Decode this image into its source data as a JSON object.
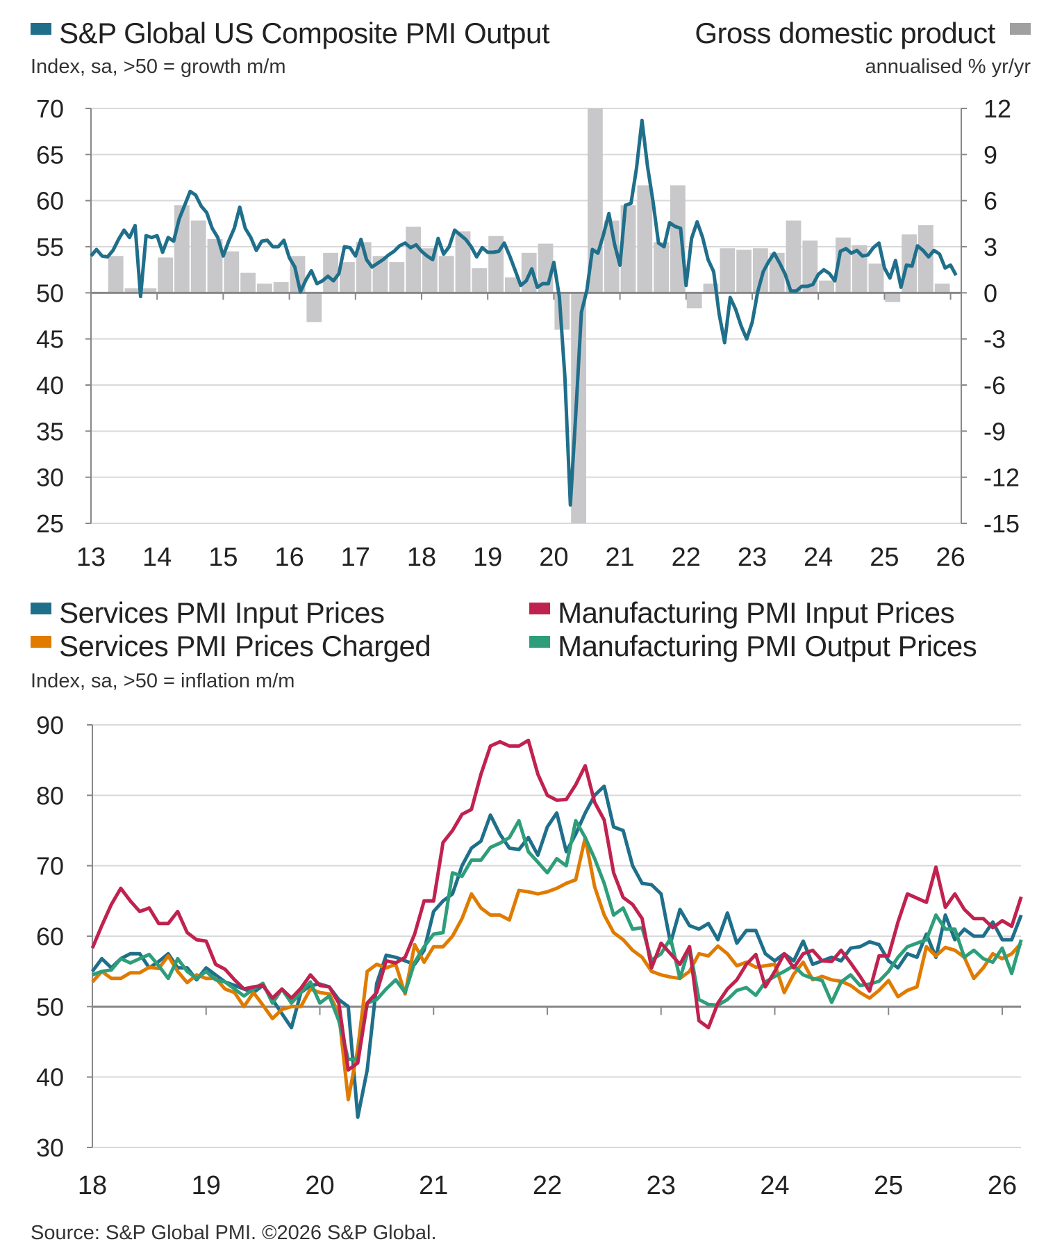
{
  "source": "Source: S&P Global PMI. ©2026 S&P Global.",
  "chart_data": [
    {
      "type": "line+bar",
      "legend": {
        "left": {
          "label": "S&P Global US Composite PMI Output",
          "subtitle": "Index, sa, >50 = growth m/m"
        },
        "right": {
          "label": "Gross domestic product",
          "subtitle": "annualised % yr/yr"
        }
      },
      "colors": {
        "pmi": "#1f6f8b",
        "gdp": "#c8c8ca"
      },
      "y_left": {
        "range": [
          25,
          70
        ],
        "ticks": [
          "70",
          "65",
          "60",
          "55",
          "50",
          "45",
          "40",
          "35",
          "30",
          "25"
        ]
      },
      "y_right": {
        "range": [
          -15,
          12
        ],
        "ticks": [
          "12",
          "9",
          "6",
          "3",
          "0",
          "-3",
          "-6",
          "-9",
          "-12",
          "-15"
        ]
      },
      "x_ticks": [
        "13",
        "14",
        "15",
        "16",
        "17",
        "18",
        "19",
        "20",
        "21",
        "22",
        "23",
        "24",
        "25",
        "26"
      ],
      "grid": true,
      "series": [
        {
          "key": "pmi",
          "axis": "left",
          "start": "2013-01",
          "frequency": "monthly",
          "values": [
            54.0,
            54.7,
            54.0,
            53.9,
            54.6,
            55.8,
            56.8,
            56.0,
            57.3,
            49.6,
            56.2,
            56.0,
            56.2,
            54.4,
            56.0,
            55.6,
            58.0,
            59.5,
            61.0,
            60.6,
            59.4,
            58.7,
            57.0,
            56.0,
            54.0,
            55.6,
            57.0,
            59.3,
            57.0,
            56.0,
            54.6,
            55.6,
            55.7,
            55.0,
            55.0,
            55.7,
            53.8,
            52.8,
            50.1,
            51.4,
            52.4,
            51.0,
            51.3,
            51.8,
            51.3,
            52.1,
            55.0,
            54.9,
            54.0,
            55.8,
            53.6,
            52.8,
            53.2,
            53.6,
            54.1,
            54.5,
            55.1,
            55.4,
            54.9,
            55.2,
            54.5,
            54.0,
            53.6,
            55.9,
            54.2,
            55.0,
            56.8,
            56.3,
            55.8,
            55.0,
            53.9,
            54.9,
            54.4,
            54.4,
            54.5,
            55.4,
            54.0,
            52.4,
            50.8,
            51.3,
            52.6,
            50.6,
            51.0,
            51.0,
            53.3,
            49.6,
            40.9,
            27.0,
            37.0,
            47.9,
            50.3,
            54.7,
            54.3,
            56.3,
            58.6,
            55.3,
            53.0,
            59.5,
            59.7,
            63.5,
            68.7,
            63.7,
            59.9,
            55.4,
            55.0,
            57.6,
            57.2,
            57.0,
            50.8,
            55.9,
            57.7,
            56.0,
            53.6,
            52.3,
            47.7,
            44.6,
            49.5,
            48.2,
            46.4,
            45.0,
            46.8,
            50.1,
            52.3,
            53.4,
            54.3,
            53.2,
            52.0,
            50.2,
            50.2,
            50.7,
            50.7,
            50.9,
            52.0,
            52.5,
            52.1,
            51.3,
            54.5,
            54.8,
            54.3,
            54.6,
            54.0,
            54.1,
            54.9,
            55.4,
            52.7,
            51.6,
            53.5,
            50.6,
            53.0,
            52.9,
            55.1,
            54.6,
            53.9,
            54.6,
            54.2,
            52.7,
            53.0,
            51.9
          ]
        },
        {
          "key": "gdp",
          "axis": "right",
          "type": "bar",
          "start": "2013-Q2",
          "frequency": "quarterly",
          "values": [
            2.4,
            0.3,
            0.3,
            2.3,
            5.7,
            4.7,
            3.5,
            2.7,
            1.3,
            0.6,
            0.7,
            2.4,
            -1.9,
            2.6,
            2.0,
            3.3,
            2.4,
            2.0,
            4.3,
            2.9,
            2.4,
            4.0,
            1.6,
            3.7,
            1.0,
            2.6,
            3.2,
            -2.4,
            -15,
            12,
            4.7,
            5.7,
            7.0,
            3.3,
            7.0,
            -1.0,
            0.6,
            2.9,
            2.8,
            2.9,
            2.6,
            4.7,
            3.4,
            0.8,
            3.6,
            3.1,
            1.9,
            -0.6,
            3.8,
            4.4,
            0.6
          ]
        }
      ]
    },
    {
      "type": "line",
      "subtitle": "Index, sa, >50 = inflation m/m",
      "y": {
        "range": [
          30,
          90
        ],
        "ticks": [
          "90",
          "80",
          "70",
          "60",
          "50",
          "40",
          "30"
        ]
      },
      "x_ticks": [
        "18",
        "19",
        "20",
        "21",
        "22",
        "23",
        "24",
        "25",
        "26"
      ],
      "grid": true,
      "legend_placement": "top",
      "series": [
        {
          "name": "Services PMI Input Prices",
          "color": "#1f6f8b",
          "start": "2018-01",
          "frequency": "monthly",
          "values": [
            55,
            56.8,
            55.5,
            56.8,
            57.5,
            57.5,
            55.5,
            56.4,
            57.5,
            55.5,
            55.5,
            53.8,
            55.5,
            54.5,
            53.5,
            53,
            52.5,
            52,
            53,
            51,
            49,
            47,
            52,
            53,
            53.2,
            52.8,
            51,
            50,
            34.3,
            41,
            53.3,
            57.3,
            57,
            56.5,
            56,
            58,
            63.5,
            65,
            66,
            70,
            72.5,
            73.5,
            77.2,
            74.5,
            72.5,
            72.3,
            74,
            71.5,
            75.5,
            77.5,
            72,
            74.5,
            77.5,
            80,
            81.3,
            75.5,
            75,
            70,
            67.5,
            67.3,
            66,
            59,
            63.8,
            61.5,
            61,
            61.8,
            59.5,
            63.3,
            59,
            60.8,
            60.8,
            57.5,
            56.5,
            57.5,
            56.5,
            59.3,
            56,
            56.5,
            57,
            56.5,
            58.3,
            58.5,
            59.2,
            58.8,
            56.5,
            55.5,
            57.5,
            57,
            60.3,
            57,
            63,
            59.5,
            61,
            60,
            60,
            62,
            59.5,
            59.5,
            63
          ]
        },
        {
          "name": "Manufacturing PMI Input Prices",
          "color": "#c0224f",
          "start": "2018-01",
          "frequency": "monthly",
          "values": [
            58.3,
            61.5,
            64.5,
            66.8,
            65,
            63.5,
            64,
            61.8,
            61.8,
            63.5,
            60.5,
            59.5,
            59.3,
            56,
            55.3,
            53.8,
            52.5,
            52.8,
            53,
            51.2,
            52.5,
            51.2,
            52.6,
            54.5,
            53,
            52.8,
            50.5,
            41,
            42,
            50.5,
            52,
            56.5,
            56.2,
            57,
            60.3,
            65,
            65,
            73.3,
            75,
            77.3,
            78,
            83,
            87,
            87.6,
            87,
            87,
            87.8,
            83,
            80,
            79.3,
            79.4,
            81.5,
            84.2,
            79,
            76.5,
            69,
            65.5,
            64.5,
            62.5,
            55.5,
            59,
            57.5,
            56,
            58.5,
            48,
            47,
            50.5,
            52.5,
            53.8,
            56,
            57.4,
            52.8,
            55,
            57.5,
            55.5,
            57.5,
            58,
            56.5,
            56.4,
            58,
            56.2,
            54.3,
            52.2,
            57.2,
            57.2,
            62,
            66,
            65.4,
            64.8,
            69.8,
            64.1,
            66,
            63.8,
            62.5,
            62.5,
            61.2,
            62.2,
            61.4,
            65.6
          ]
        },
        {
          "name": "Services PMI Prices Charged",
          "color": "#e07b00",
          "start": "2018-01",
          "frequency": "monthly",
          "values": [
            53.5,
            55,
            54,
            54,
            54.8,
            54.8,
            55.6,
            55.4,
            57.2,
            55,
            53.4,
            54.5,
            54,
            54,
            52.5,
            52,
            50,
            52,
            50.2,
            48.3,
            49.6,
            50,
            50,
            52.5,
            52,
            51.8,
            49,
            36.8,
            44,
            55,
            56,
            55.5,
            56,
            51.8,
            58.8,
            56.3,
            58.5,
            58.5,
            60,
            62.5,
            66,
            64,
            63,
            63,
            62.3,
            66.5,
            66.3,
            66,
            66.3,
            66.8,
            67.5,
            68,
            74,
            67,
            63,
            60.5,
            59.5,
            58,
            57,
            55,
            54.5,
            54.2,
            54,
            55,
            57.5,
            57.2,
            58.6,
            57.5,
            55.8,
            56.3,
            55.6,
            55.8,
            56,
            52,
            54.6,
            56.3,
            53.8,
            54.3,
            53.8,
            53.6,
            53,
            52,
            51.2,
            52.3,
            53.7,
            51.4,
            52.3,
            52.8,
            58.5,
            57.2,
            58.4,
            58,
            57,
            54,
            55.5,
            57.5,
            56.8,
            57.5,
            59
          ]
        },
        {
          "name": "Manufacturing PMI Output Prices",
          "color": "#2e9e7a",
          "start": "2018-01",
          "frequency": "monthly",
          "values": [
            54.5,
            55,
            55.2,
            56.8,
            56.2,
            56.8,
            57.4,
            55.8,
            54,
            56.8,
            55,
            54,
            55,
            53.8,
            53.5,
            52.5,
            51.5,
            52.5,
            53.3,
            50.5,
            52.5,
            50.5,
            52,
            53.5,
            50.5,
            51.5,
            48,
            42.5,
            42.5,
            50.5,
            51,
            52.5,
            53.8,
            52,
            56.3,
            58.5,
            60.3,
            60.5,
            69,
            68.5,
            70.8,
            70.8,
            72.6,
            73.2,
            74,
            76.4,
            72,
            70.5,
            69,
            71,
            70,
            76.4,
            74,
            71,
            67.5,
            63,
            64,
            61,
            61.2,
            56.6,
            57.5,
            59.7,
            54,
            58.5,
            51,
            50.3,
            50.2,
            51,
            52.3,
            52.7,
            51.6,
            53.5,
            54.3,
            55,
            55.8,
            54.5,
            54,
            53.7,
            50.6,
            53.5,
            54.5,
            53,
            53.2,
            53.6,
            55,
            57,
            58.5,
            59,
            59.5,
            63,
            61,
            61,
            57,
            58,
            56.8,
            56.3,
            58.3,
            54.7,
            59.5
          ]
        }
      ]
    }
  ]
}
